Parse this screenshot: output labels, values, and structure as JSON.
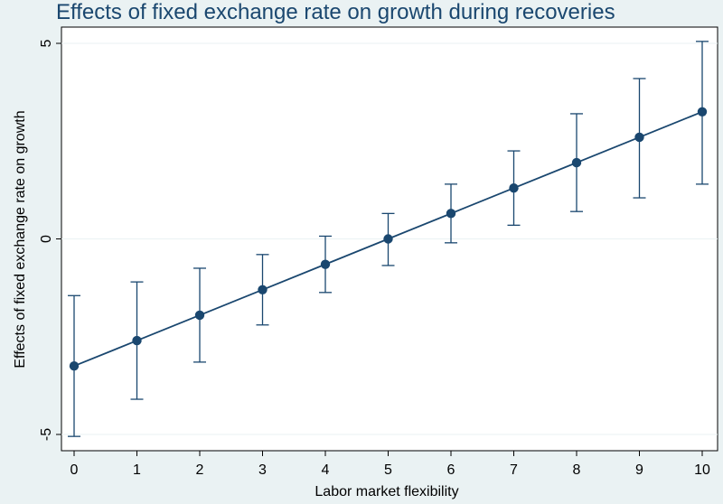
{
  "chart_data": {
    "type": "line",
    "title": "Effects of fixed exchange rate on growth during recoveries",
    "xlabel": "Labor market flexibility",
    "ylabel": "Effects of fixed exchange rate on growth",
    "xlim": [
      0,
      10
    ],
    "ylim": [
      -5,
      5
    ],
    "x_ticks": [
      "0",
      "1",
      "2",
      "3",
      "4",
      "5",
      "6",
      "7",
      "8",
      "9",
      "10"
    ],
    "y_ticks": [
      "5",
      "0",
      "-5"
    ],
    "x": [
      0,
      1,
      2,
      3,
      4,
      5,
      6,
      7,
      8,
      9,
      10
    ],
    "series": [
      {
        "values": [
          -3.25,
          -2.6,
          -1.95,
          -1.3,
          -0.65,
          0.0,
          0.65,
          1.3,
          1.95,
          2.6,
          3.25
        ],
        "ci_low": [
          -5.05,
          -4.1,
          -3.15,
          -2.2,
          -1.37,
          -0.68,
          -0.1,
          0.35,
          0.7,
          1.05,
          1.4
        ],
        "ci_high": [
          -1.45,
          -1.1,
          -0.75,
          -0.4,
          0.07,
          0.65,
          1.4,
          2.25,
          3.2,
          4.1,
          5.05
        ]
      }
    ],
    "grid": "y",
    "legend": "none",
    "colors": {
      "series": "#1a476f",
      "background": "#eaf2f3",
      "plot": "#ffffff",
      "grid": "#eaf2f3"
    }
  }
}
